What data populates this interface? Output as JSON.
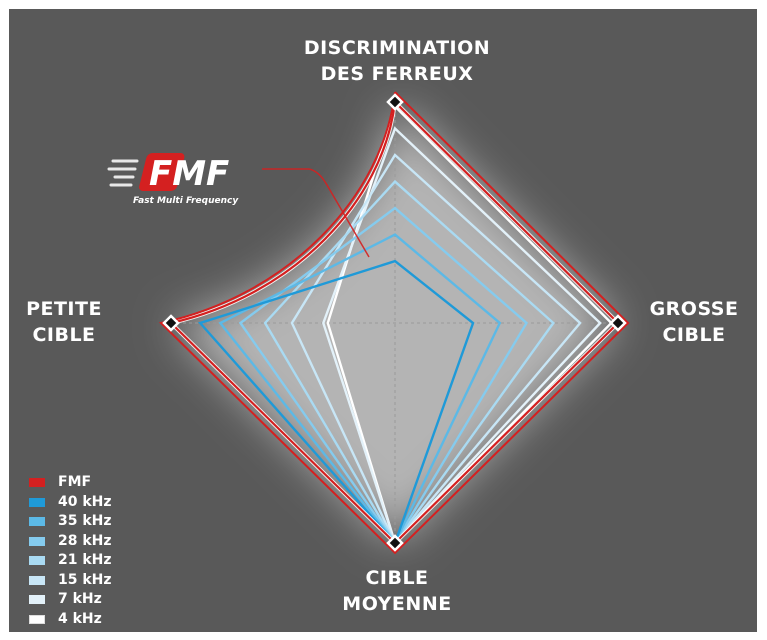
{
  "chart_data": {
    "type": "radar",
    "axes": [
      {
        "id": "top",
        "label_lines": [
          "DISCRIMINATION",
          "DES FERREUX"
        ]
      },
      {
        "id": "right",
        "label_lines": [
          "GROSSE",
          "CIBLE"
        ]
      },
      {
        "id": "bottom",
        "label_lines": [
          "CIBLE",
          "MOYENNE"
        ]
      },
      {
        "id": "left",
        "label_lines": [
          "PETITE",
          "CIBLE"
        ]
      }
    ],
    "series": [
      {
        "name": "FMF",
        "color": "#d42020",
        "values": {
          "top": 1.0,
          "right": 1.0,
          "bottom": 1.0,
          "left": 1.0
        }
      },
      {
        "name": "40 kHz",
        "color": "#1f9ad8",
        "values": {
          "top": 0.28,
          "right": 0.35,
          "bottom": 1.0,
          "left": 0.87
        }
      },
      {
        "name": "35 kHz",
        "color": "#5cb9e6",
        "values": {
          "top": 0.4,
          "right": 0.47,
          "bottom": 1.0,
          "left": 0.78
        }
      },
      {
        "name": "28 kHz",
        "color": "#85cbee",
        "values": {
          "top": 0.52,
          "right": 0.59,
          "bottom": 1.0,
          "left": 0.69
        }
      },
      {
        "name": "21 kHz",
        "color": "#a9daf2",
        "values": {
          "top": 0.64,
          "right": 0.71,
          "bottom": 1.0,
          "left": 0.58
        }
      },
      {
        "name": "15 kHz",
        "color": "#c8e6f6",
        "values": {
          "top": 0.76,
          "right": 0.83,
          "bottom": 1.0,
          "left": 0.46
        }
      },
      {
        "name": "7 kHz",
        "color": "#e3f1f9",
        "values": {
          "top": 0.88,
          "right": 0.92,
          "bottom": 1.0,
          "left": 0.32
        }
      },
      {
        "name": "4 kHz",
        "color": "#ffffff",
        "values": {
          "top": 0.98,
          "right": 0.97,
          "bottom": 1.0,
          "left": 0.3
        }
      }
    ],
    "grid": true,
    "legend": "bottom-left",
    "logo": {
      "text": "FMF",
      "subtitle": "Fast Multi Frequency"
    }
  }
}
